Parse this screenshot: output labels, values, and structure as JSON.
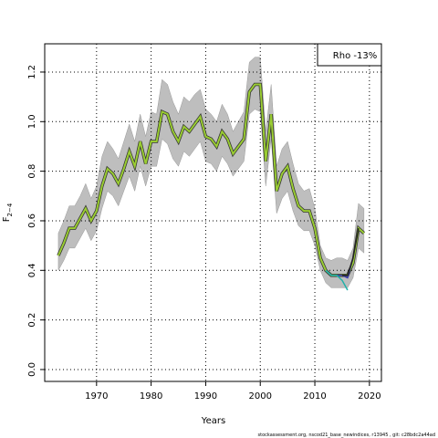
{
  "chart_data": {
    "type": "line",
    "xlabel": "Years",
    "ylabel": "F",
    "ylabel_sub": "2−4",
    "legend_text": "Rho -13%",
    "footer": "stockassessment.org, nscod21_base_newindices, r13945 , git: c28bdc2a44ad",
    "xlim": [
      1960.5,
      2022.2
    ],
    "ylim": [
      -0.048,
      1.314
    ],
    "xticks": [
      1970,
      1980,
      1990,
      2000,
      2010,
      2020
    ],
    "yticks": [
      {
        "value": 0,
        "label": "0.0"
      },
      0.2,
      0.4,
      0.6,
      0.8,
      {
        "value": 1,
        "label": "1.0"
      },
      1.2
    ],
    "grid": true,
    "band_color": "#bebebe",
    "x": [
      1963,
      1964,
      1965,
      1966,
      1967,
      1968,
      1969,
      1970,
      1971,
      1972,
      1973,
      1974,
      1975,
      1976,
      1977,
      1978,
      1979,
      1980,
      1981,
      1982,
      1983,
      1984,
      1985,
      1986,
      1987,
      1988,
      1989,
      1990,
      1991,
      1992,
      1993,
      1994,
      1995,
      1996,
      1997,
      1998,
      1999,
      2000,
      2001,
      2002,
      2003,
      2004,
      2005,
      2006,
      2007,
      2008,
      2009,
      2010,
      2011,
      2012,
      2013,
      2014,
      2015,
      2016,
      2017,
      2018,
      2019
    ],
    "upper": [
      0.55,
      0.6,
      0.66,
      0.66,
      0.7,
      0.75,
      0.69,
      0.74,
      0.86,
      0.92,
      0.89,
      0.85,
      0.92,
      0.99,
      0.92,
      1.03,
      0.94,
      1.04,
      1.03,
      1.17,
      1.15,
      1.08,
      1.03,
      1.1,
      1.08,
      1.11,
      1.13,
      1.05,
      1.03,
      1.0,
      1.07,
      1.03,
      0.96,
      1.0,
      1.04,
      1.24,
      1.26,
      1.26,
      0.96,
      1.15,
      0.82,
      0.89,
      0.92,
      0.83,
      0.75,
      0.72,
      0.73,
      0.65,
      0.5,
      0.45,
      0.44,
      0.45,
      0.45,
      0.44,
      0.49,
      0.67,
      0.65
    ],
    "lower": [
      0.4,
      0.44,
      0.49,
      0.49,
      0.53,
      0.57,
      0.52,
      0.56,
      0.65,
      0.72,
      0.7,
      0.66,
      0.72,
      0.78,
      0.72,
      0.82,
      0.74,
      0.82,
      0.82,
      0.93,
      0.91,
      0.85,
      0.82,
      0.88,
      0.86,
      0.89,
      0.92,
      0.84,
      0.83,
      0.8,
      0.86,
      0.83,
      0.78,
      0.81,
      0.84,
      1.03,
      1.05,
      1.04,
      0.74,
      0.93,
      0.63,
      0.69,
      0.72,
      0.64,
      0.58,
      0.56,
      0.56,
      0.5,
      0.4,
      0.35,
      0.33,
      0.33,
      0.33,
      0.33,
      0.37,
      0.49,
      0.47
    ],
    "values": [
      0.46,
      0.51,
      0.57,
      0.57,
      0.61,
      0.65,
      0.6,
      0.64,
      0.74,
      0.81,
      0.79,
      0.75,
      0.81,
      0.88,
      0.82,
      0.92,
      0.83,
      0.92,
      0.92,
      1.04,
      1.03,
      0.96,
      0.92,
      0.98,
      0.96,
      0.99,
      1.02,
      0.94,
      0.93,
      0.9,
      0.96,
      0.93,
      0.87,
      0.9,
      0.93,
      1.12,
      1.15,
      1.15,
      0.84,
      1.03,
      0.72,
      0.79,
      0.82,
      0.73,
      0.66,
      0.64,
      0.64,
      0.57,
      0.45,
      0.4,
      0.38,
      0.38,
      0.38,
      0.38,
      0.43,
      0.57,
      0.55
    ],
    "color": "#9acd32",
    "peels": [
      {
        "color": "#3b3bb3",
        "x": [
          2012,
          2013,
          2014,
          2015,
          2016,
          2017
        ],
        "values": [
          0.4,
          0.38,
          0.38,
          0.38,
          0.37,
          0.45
        ]
      },
      {
        "color": "#20b2aa",
        "x": [
          2012,
          2013,
          2014,
          2015,
          2016
        ],
        "values": [
          0.4,
          0.38,
          0.38,
          0.36,
          0.32
        ]
      },
      {
        "color": "#222222",
        "x": [
          2015,
          2016,
          2017,
          2018
        ],
        "values": [
          0.38,
          0.38,
          0.45,
          0.57
        ]
      }
    ]
  }
}
